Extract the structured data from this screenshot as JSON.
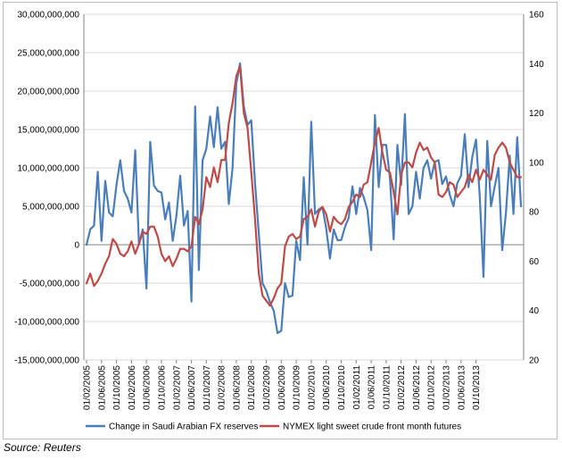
{
  "chart_data": {
    "type": "line",
    "title": "",
    "x_ticks": [
      "01/02/2005",
      "01/06/2005",
      "01/10/2005",
      "01/02/2006",
      "01/06/2006",
      "01/10/2006",
      "01/02/2007",
      "01/06/2007",
      "01/10/2007",
      "01/02/2008",
      "01/06/2008",
      "01/10/2008",
      "01/02/2009",
      "01/06/2009",
      "01/10/2009",
      "01/02/2010",
      "01/06/2010",
      "01/10/2010",
      "01/02/2011",
      "01/06/2011",
      "01/10/2011",
      "01/02/2012",
      "01/06/2012",
      "01/10/2012",
      "01/02/2013",
      "01/06/2013",
      "01/10/2013"
    ],
    "y_left": {
      "min": -15000000000,
      "max": 30000000000,
      "step": 5000000000,
      "tick_labels": [
        "-15,000,000,000",
        "-10,000,000,000",
        "-5,000,000,000",
        "0",
        "5,000,000,000",
        "10,000,000,000",
        "15,000,000,000",
        "20,000,000,000",
        "25,000,000,000",
        "30,000,000,000"
      ]
    },
    "y_right": {
      "min": 20,
      "max": 160,
      "step": 20,
      "tick_labels": [
        "20",
        "40",
        "60",
        "80",
        "100",
        "120",
        "140",
        "160"
      ]
    },
    "grid": true,
    "legend_position": "bottom",
    "series": [
      {
        "name": "Change in Saudi Arabian FX reserves",
        "axis": "left",
        "color": "#4a7ebb",
        "values": [
          0,
          2000000000,
          2500000000,
          9500000000,
          500000000,
          8300000000,
          4200000000,
          3700000000,
          7800000000,
          11000000000,
          7000000000,
          6000000000,
          4200000000,
          12300000000,
          0,
          2000000000,
          -5700000000,
          13400000000,
          7700000000,
          7000000000,
          6800000000,
          3300000000,
          5500000000,
          500000000,
          3800000000,
          9000000000,
          2500000000,
          4400000000,
          -7400000000,
          18000000000,
          -3300000000,
          11000000000,
          12500000000,
          16700000000,
          12700000000,
          17900000000,
          12500000000,
          13400000000,
          5300000000,
          10000000000,
          21000000000,
          23600000000,
          18000000000,
          15600000000,
          16200000000,
          8000000000,
          1500000000,
          -5000000000,
          -6000000000,
          -7500000000,
          -8600000000,
          -11500000000,
          -11200000000,
          -5000000000,
          -6800000000,
          -6600000000,
          500000000,
          -2000000000,
          8800000000,
          0,
          16000000000,
          4000000000,
          4600000000,
          4900000000,
          2100000000,
          -1800000000,
          2000000000,
          600000000,
          600000000,
          2300000000,
          3500000000,
          7600000000,
          4000000000,
          7400000000,
          6200000000,
          4500000000,
          -700000000,
          16900000000,
          7500000000,
          13000000000,
          13000000000,
          8700000000,
          700000000,
          13000000000,
          7800000000,
          17000000000,
          4000000000,
          5000000000,
          9500000000,
          6000000000,
          10000000000,
          11000000000,
          8600000000,
          10800000000,
          11000000000,
          7900000000,
          8900000000,
          6500000000,
          5000000000,
          8000000000,
          9000000000,
          14400000000,
          7500000000,
          11400000000,
          13700000000,
          6300000000,
          -4200000000,
          13500000000,
          5000000000,
          7600000000,
          10000000000,
          -700000000,
          4200000000,
          11600000000,
          4000000000,
          14000000000,
          5000000000
        ]
      },
      {
        "name": "NYMEX light sweet crude front month futures",
        "axis": "right",
        "color": "#be4b48",
        "values": [
          51,
          55,
          50,
          52,
          55,
          59,
          62,
          69,
          67,
          63,
          62,
          64,
          68,
          63,
          67,
          72,
          71,
          74,
          74,
          70,
          63,
          60,
          62,
          58,
          61,
          65,
          65,
          64,
          66,
          78,
          75,
          81,
          94,
          90,
          98,
          92,
          101,
          101,
          116,
          124,
          135,
          139,
          120,
          114,
          96,
          77,
          55,
          46,
          44,
          42,
          45,
          49,
          51,
          66,
          70,
          71,
          69,
          70,
          77,
          78,
          81,
          74,
          80,
          82,
          79,
          72,
          78,
          76,
          75,
          77,
          82,
          84,
          87,
          86,
          91,
          92,
          100,
          108,
          114,
          104,
          97,
          96,
          88,
          79,
          95,
          100,
          100,
          98,
          104,
          108,
          105,
          106,
          102,
          100,
          87,
          86,
          88,
          92,
          91,
          86,
          88,
          90,
          95,
          92,
          97,
          93,
          97,
          95,
          93,
          103,
          106,
          108,
          106,
          100,
          97,
          94,
          94
        ]
      }
    ]
  },
  "source_text": "Source: Reuters"
}
